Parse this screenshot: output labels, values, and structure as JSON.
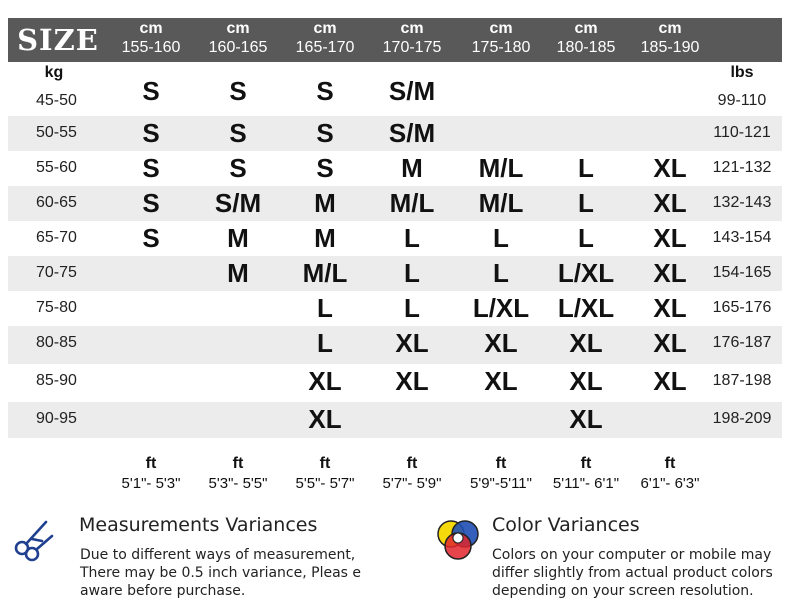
{
  "title": "SIZE",
  "header_columns": [
    {
      "unit": "cm",
      "range": "155-160"
    },
    {
      "unit": "cm",
      "range": "160-165"
    },
    {
      "unit": "cm",
      "range": "165-170"
    },
    {
      "unit": "cm",
      "range": "170-175"
    },
    {
      "unit": "cm",
      "range": "175-180"
    },
    {
      "unit": "cm",
      "range": "180-185"
    },
    {
      "unit": "cm",
      "range": "185-190"
    }
  ],
  "weight_unit_left": "kg",
  "weight_unit_right": "lbs",
  "rows": [
    {
      "kg": "45-50",
      "lbs": "99-110",
      "sizes": [
        "S",
        "S",
        "S",
        "S/M",
        "",
        "",
        ""
      ]
    },
    {
      "kg": "50-55",
      "lbs": "110-121",
      "sizes": [
        "S",
        "S",
        "S",
        "S/M",
        "",
        "",
        ""
      ]
    },
    {
      "kg": "55-60",
      "lbs": "121-132",
      "sizes": [
        "S",
        "S",
        "S",
        "M",
        "M/L",
        "L",
        "XL"
      ]
    },
    {
      "kg": "60-65",
      "lbs": "132-143",
      "sizes": [
        "S",
        "S/M",
        "M",
        "M/L",
        "M/L",
        "L",
        "XL"
      ]
    },
    {
      "kg": "65-70",
      "lbs": "143-154",
      "sizes": [
        "S",
        "M",
        "M",
        "L",
        "L",
        "L",
        "XL"
      ]
    },
    {
      "kg": "70-75",
      "lbs": "154-165",
      "sizes": [
        "",
        "M",
        "M/L",
        "L",
        "L",
        "L/XL",
        "XL"
      ]
    },
    {
      "kg": "75-80",
      "lbs": "165-176",
      "sizes": [
        "",
        "",
        "L",
        "L",
        "L/XL",
        "L/XL",
        "XL"
      ]
    },
    {
      "kg": "80-85",
      "lbs": "176-187",
      "sizes": [
        "",
        "",
        "L",
        "XL",
        "XL",
        "XL",
        "XL"
      ]
    },
    {
      "kg": "85-90",
      "lbs": "187-198",
      "sizes": [
        "",
        "",
        "XL",
        "XL",
        "XL",
        "XL",
        "XL"
      ]
    },
    {
      "kg": "90-95",
      "lbs": "198-209",
      "sizes": [
        "",
        "",
        "XL",
        "",
        "",
        "XL",
        ""
      ]
    }
  ],
  "footer_columns": [
    {
      "unit": "ft",
      "range": "5'1\"- 5'3\""
    },
    {
      "unit": "ft",
      "range": "5'3\"- 5'5\""
    },
    {
      "unit": "ft",
      "range": "5'5\"- 5'7\""
    },
    {
      "unit": "ft",
      "range": "5'7\"- 5'9\""
    },
    {
      "unit": "ft",
      "range": "5'9\"-5'11\""
    },
    {
      "unit": "ft",
      "range": "5'11\"- 6'1\""
    },
    {
      "unit": "ft",
      "range": "6'1\"- 6'3\""
    }
  ],
  "notes": {
    "measurement": {
      "icon": "scissors-icon",
      "title": "Measurements Variances",
      "lines": [
        "Due to different ways of measurement,",
        "There may be 0.5 inch variance, Pleas e",
        "aware before purchase."
      ]
    },
    "color": {
      "icon": "color-circles-icon",
      "title": "Color Variances",
      "lines": [
        "Colors on your computer or mobile may",
        "differ slightly from actual product colors",
        "depending on your screen resolution."
      ]
    }
  },
  "colors": {
    "header_bg": "#595959",
    "row_shade": "#ececec",
    "icon_blue": "#1f3f8f",
    "circle_yellow": "#f5d90a",
    "circle_blue": "#1e4fb5",
    "circle_red": "#e0252b"
  }
}
